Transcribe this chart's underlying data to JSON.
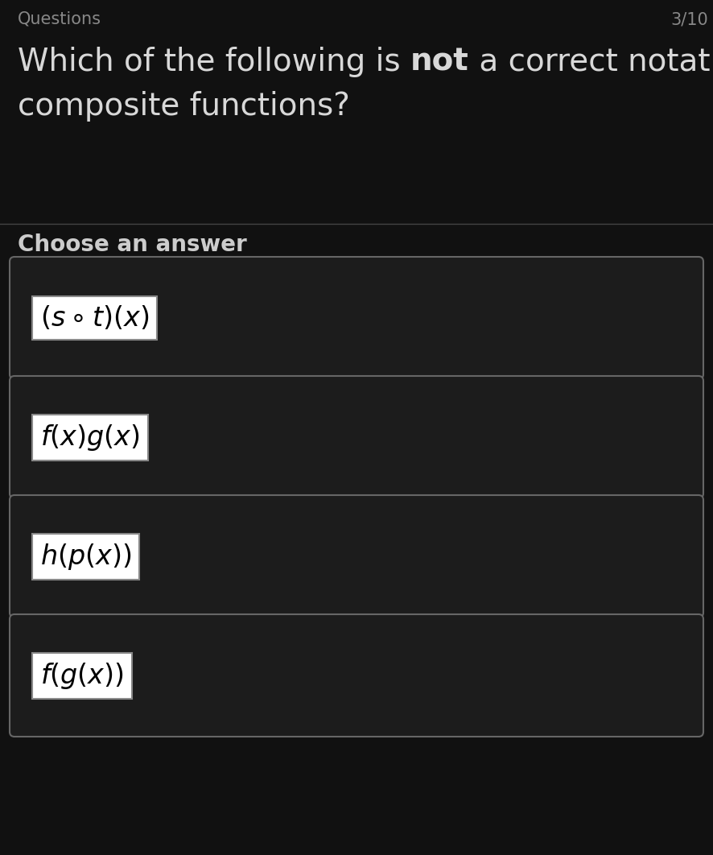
{
  "background_color": "#111111",
  "header_text": "Questions",
  "header_color": "#888888",
  "counter_text": "3/10",
  "counter_color": "#888888",
  "question_color": "#d8d8d8",
  "question_fontsize": 28,
  "divider_color": "#444444",
  "section_label": "Choose an answer",
  "section_label_color": "#cccccc",
  "section_label_fontsize": 20,
  "answers": [
    {
      "latex": "$(s \\circ t)(x)$"
    },
    {
      "latex": "$f(x)g(x)$"
    },
    {
      "latex": "$h(p(x))$"
    },
    {
      "latex": "$f(g(x))$"
    }
  ],
  "answer_bg_color": "#1c1c1c",
  "answer_border_color": "#666666",
  "answer_fontsize": 24,
  "fig_width": 8.86,
  "fig_height": 10.62
}
